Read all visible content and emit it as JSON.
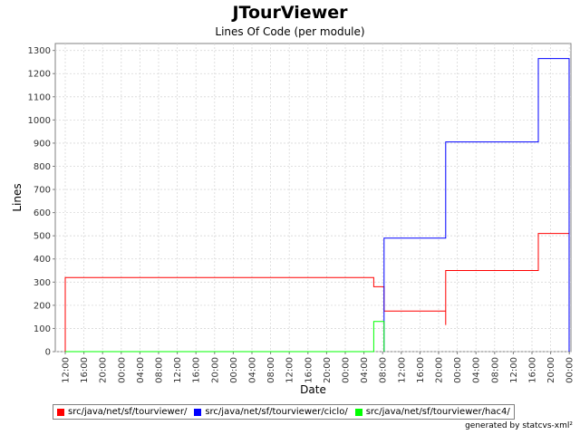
{
  "chart_data": {
    "type": "line",
    "step": true,
    "title": "JTourViewer",
    "subtitle": "Lines Of Code (per module)",
    "xlabel": "Date",
    "ylabel": "Lines",
    "ylim": [
      0,
      1330
    ],
    "yticks": [
      0,
      100,
      200,
      300,
      400,
      500,
      600,
      700,
      800,
      900,
      1000,
      1100,
      1200,
      1300
    ],
    "xlim": [
      -1.1,
      33.9
    ],
    "xticks": [
      "12:00",
      "16:00",
      "20:00",
      "00:00",
      "04:00",
      "08:00",
      "12:00",
      "16:00",
      "20:00",
      "00:00",
      "04:00",
      "08:00",
      "12:00",
      "16:00",
      "20:00",
      "00:00",
      "04:00",
      "08:00",
      "12:00",
      "16:00",
      "20:00",
      "00:00",
      "04:00",
      "08:00",
      "12:00",
      "16:00",
      "20:00",
      "00:00"
    ],
    "grid": true,
    "legend_position": "bottom",
    "series": [
      {
        "name": "src/java/net/sf/tourviewer/",
        "color": "#ff0000",
        "points": [
          [
            0,
            0
          ],
          [
            0,
            320
          ],
          [
            30,
            320
          ],
          [
            30,
            280
          ],
          [
            31.1,
            280
          ],
          [
            31.1,
            175
          ],
          [
            31.1,
            175
          ],
          [
            31.1,
            175
          ],
          [
            31.1,
            175
          ],
          [
            31.1,
            175
          ]
        ]
      }
    ]
  },
  "legend": [
    {
      "label": "src/java/net/sf/tourviewer/",
      "color": "#ff0000"
    },
    {
      "label": "src/java/net/sf/tourviewer/ciclo/",
      "color": "#0000ff"
    },
    {
      "label": "src/java/net/sf/tourviewer/hac4/",
      "color": "#00ff00"
    }
  ],
  "footer": "generated by statcvs-xml²"
}
